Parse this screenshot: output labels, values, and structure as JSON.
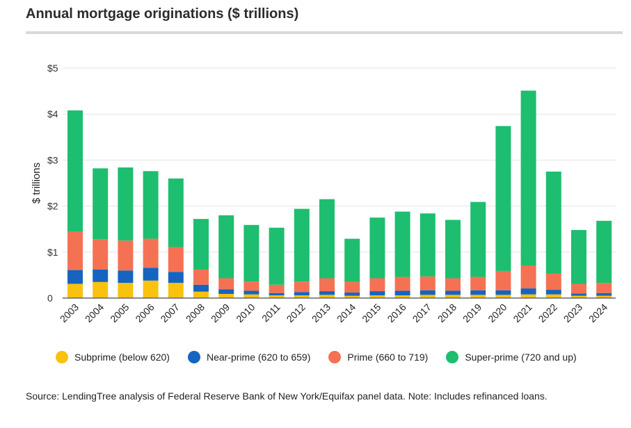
{
  "title": "Annual mortgage originations ($ trillions)",
  "source": "Source: LendingTree analysis of Federal Reserve Bank of New York/Equifax panel data. Note: Includes refinanced loans.",
  "colors": {
    "subprime": "#f8c20f",
    "near_prime": "#1565c0",
    "prime": "#f47253",
    "super_prime": "#1dbe6f",
    "grid": "#e3e3e3",
    "axis": "#666666"
  },
  "chart_data": {
    "type": "bar",
    "stacked": true,
    "title": "Annual mortgage originations ($ trillions)",
    "xlabel": "",
    "ylabel": "$ trillions",
    "ylim": [
      0,
      5
    ],
    "yticks": [
      0,
      1,
      2,
      3,
      4,
      5
    ],
    "ytick_labels": [
      "0",
      "$1",
      "$2",
      "$3",
      "$4",
      "$5"
    ],
    "grid": true,
    "legend_position": "bottom",
    "categories": [
      "2003",
      "2004",
      "2005",
      "2006",
      "2007",
      "2008",
      "2009",
      "2010",
      "2011",
      "2012",
      "2013",
      "2014",
      "2015",
      "2016",
      "2017",
      "2018",
      "2019",
      "2020",
      "2021",
      "2022",
      "2023",
      "2024"
    ],
    "series": [
      {
        "name": "Subprime (below 620)",
        "color": "#f8c20f",
        "values": [
          0.31,
          0.35,
          0.33,
          0.38,
          0.33,
          0.14,
          0.09,
          0.08,
          0.06,
          0.06,
          0.07,
          0.05,
          0.06,
          0.06,
          0.07,
          0.07,
          0.07,
          0.07,
          0.08,
          0.08,
          0.05,
          0.05
        ]
      },
      {
        "name": "Near-prime (620 to 659)",
        "color": "#1565c0",
        "values": [
          0.3,
          0.27,
          0.27,
          0.28,
          0.24,
          0.15,
          0.1,
          0.08,
          0.05,
          0.07,
          0.08,
          0.07,
          0.09,
          0.1,
          0.1,
          0.09,
          0.1,
          0.1,
          0.13,
          0.1,
          0.05,
          0.06
        ]
      },
      {
        "name": "Prime (660 to 719)",
        "color": "#f47253",
        "values": [
          0.83,
          0.66,
          0.65,
          0.63,
          0.54,
          0.33,
          0.24,
          0.2,
          0.18,
          0.23,
          0.28,
          0.23,
          0.28,
          0.3,
          0.3,
          0.27,
          0.29,
          0.42,
          0.5,
          0.35,
          0.21,
          0.22
        ]
      },
      {
        "name": "Super-prime (720 and up)",
        "color": "#1dbe6f",
        "values": [
          2.64,
          1.54,
          1.59,
          1.47,
          1.49,
          1.1,
          1.37,
          1.23,
          1.24,
          1.58,
          1.72,
          0.94,
          1.32,
          1.42,
          1.37,
          1.27,
          1.63,
          3.15,
          3.8,
          2.22,
          1.17,
          1.35
        ]
      }
    ]
  }
}
